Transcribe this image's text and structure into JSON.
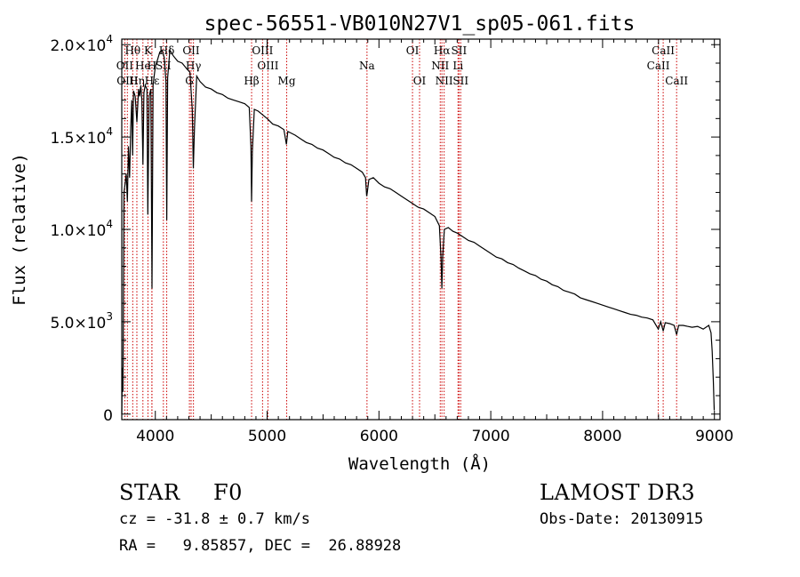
{
  "chart_data": {
    "type": "line",
    "title": "spec-56551-VB010N27V1_sp05-061.fits",
    "xlabel": "Wavelength (Å)",
    "ylabel": "Flux (relative)",
    "xlim": [
      3700,
      9050
    ],
    "ylim": [
      -300,
      20300
    ],
    "x_ticks": [
      4000,
      5000,
      6000,
      7000,
      8000,
      9000
    ],
    "x_tick_labels": [
      "4000",
      "5000",
      "6000",
      "7000",
      "8000",
      "9000"
    ],
    "y_ticks": [
      {
        "value": 0,
        "mantissa": "0",
        "exponent": ""
      },
      {
        "value": 5000,
        "mantissa": "5.0×10",
        "exponent": "3"
      },
      {
        "value": 10000,
        "mantissa": "1.0×10",
        "exponent": "4"
      },
      {
        "value": 15000,
        "mantissa": "1.5×10",
        "exponent": "4"
      },
      {
        "value": 20000,
        "mantissa": "2.0×10",
        "exponent": "4"
      }
    ],
    "series": [
      {
        "name": "spectrum",
        "color": "#000000",
        "points": [
          [
            3700,
            0
          ],
          [
            3705,
            2500
          ],
          [
            3710,
            1200
          ],
          [
            3720,
            12000
          ],
          [
            3730,
            12500
          ],
          [
            3740,
            13000
          ],
          [
            3750,
            11500
          ],
          [
            3760,
            14500
          ],
          [
            3770,
            12800
          ],
          [
            3780,
            15500
          ],
          [
            3790,
            17000
          ],
          [
            3797,
            14000
          ],
          [
            3805,
            17500
          ],
          [
            3820,
            17200
          ],
          [
            3835,
            15800
          ],
          [
            3850,
            17600
          ],
          [
            3860,
            17200
          ],
          [
            3870,
            17800
          ],
          [
            3880,
            17000
          ],
          [
            3889,
            13500
          ],
          [
            3898,
            17400
          ],
          [
            3910,
            17800
          ],
          [
            3925,
            17600
          ],
          [
            3933,
            10800
          ],
          [
            3945,
            17200
          ],
          [
            3960,
            17600
          ],
          [
            3970,
            6800
          ],
          [
            3980,
            17800
          ],
          [
            4000,
            18800
          ],
          [
            4020,
            19200
          ],
          [
            4040,
            19600
          ],
          [
            4060,
            19700
          ],
          [
            4080,
            19300
          ],
          [
            4095,
            18000
          ],
          [
            4102,
            10500
          ],
          [
            4110,
            18200
          ],
          [
            4130,
            19700
          ],
          [
            4160,
            19400
          ],
          [
            4200,
            19100
          ],
          [
            4240,
            19000
          ],
          [
            4280,
            18700
          ],
          [
            4310,
            18500
          ],
          [
            4330,
            16500
          ],
          [
            4340,
            13300
          ],
          [
            4350,
            15500
          ],
          [
            4370,
            18300
          ],
          [
            4400,
            18000
          ],
          [
            4450,
            17700
          ],
          [
            4500,
            17600
          ],
          [
            4550,
            17400
          ],
          [
            4600,
            17300
          ],
          [
            4650,
            17100
          ],
          [
            4700,
            17000
          ],
          [
            4750,
            16900
          ],
          [
            4800,
            16800
          ],
          [
            4840,
            16600
          ],
          [
            4855,
            14500
          ],
          [
            4861,
            11500
          ],
          [
            4868,
            14200
          ],
          [
            4885,
            16500
          ],
          [
            4920,
            16400
          ],
          [
            4960,
            16200
          ],
          [
            5000,
            16000
          ],
          [
            5050,
            15700
          ],
          [
            5100,
            15600
          ],
          [
            5150,
            15400
          ],
          [
            5172,
            14600
          ],
          [
            5185,
            15300
          ],
          [
            5250,
            15100
          ],
          [
            5300,
            14900
          ],
          [
            5350,
            14700
          ],
          [
            5400,
            14600
          ],
          [
            5450,
            14400
          ],
          [
            5500,
            14300
          ],
          [
            5550,
            14100
          ],
          [
            5600,
            13900
          ],
          [
            5650,
            13800
          ],
          [
            5700,
            13600
          ],
          [
            5750,
            13500
          ],
          [
            5800,
            13300
          ],
          [
            5850,
            13100
          ],
          [
            5880,
            12800
          ],
          [
            5890,
            11800
          ],
          [
            5896,
            12000
          ],
          [
            5910,
            12700
          ],
          [
            5950,
            12800
          ],
          [
            6000,
            12500
          ],
          [
            6050,
            12300
          ],
          [
            6100,
            12200
          ],
          [
            6150,
            12000
          ],
          [
            6200,
            11800
          ],
          [
            6250,
            11600
          ],
          [
            6300,
            11400
          ],
          [
            6350,
            11200
          ],
          [
            6400,
            11100
          ],
          [
            6450,
            10900
          ],
          [
            6500,
            10700
          ],
          [
            6540,
            10200
          ],
          [
            6555,
            8500
          ],
          [
            6563,
            6800
          ],
          [
            6570,
            8500
          ],
          [
            6585,
            10000
          ],
          [
            6620,
            10100
          ],
          [
            6660,
            9900
          ],
          [
            6700,
            9800
          ],
          [
            6750,
            9600
          ],
          [
            6800,
            9400
          ],
          [
            6850,
            9300
          ],
          [
            6900,
            9100
          ],
          [
            6950,
            8900
          ],
          [
            7000,
            8700
          ],
          [
            7050,
            8500
          ],
          [
            7100,
            8400
          ],
          [
            7150,
            8200
          ],
          [
            7200,
            8100
          ],
          [
            7250,
            7900
          ],
          [
            7300,
            7750
          ],
          [
            7350,
            7600
          ],
          [
            7400,
            7500
          ],
          [
            7450,
            7300
          ],
          [
            7500,
            7200
          ],
          [
            7550,
            7000
          ],
          [
            7600,
            6900
          ],
          [
            7650,
            6700
          ],
          [
            7700,
            6600
          ],
          [
            7750,
            6500
          ],
          [
            7800,
            6300
          ],
          [
            7850,
            6200
          ],
          [
            7900,
            6100
          ],
          [
            7950,
            6000
          ],
          [
            8000,
            5900
          ],
          [
            8050,
            5800
          ],
          [
            8100,
            5700
          ],
          [
            8150,
            5600
          ],
          [
            8200,
            5500
          ],
          [
            8250,
            5400
          ],
          [
            8300,
            5350
          ],
          [
            8350,
            5250
          ],
          [
            8400,
            5200
          ],
          [
            8450,
            5100
          ],
          [
            8498,
            4600
          ],
          [
            8520,
            5000
          ],
          [
            8542,
            4500
          ],
          [
            8560,
            4950
          ],
          [
            8600,
            4900
          ],
          [
            8640,
            4800
          ],
          [
            8662,
            4300
          ],
          [
            8680,
            4800
          ],
          [
            8720,
            4800
          ],
          [
            8760,
            4750
          ],
          [
            8800,
            4700
          ],
          [
            8850,
            4750
          ],
          [
            8900,
            4600
          ],
          [
            8950,
            4800
          ],
          [
            8970,
            4400
          ],
          [
            8980,
            3400
          ],
          [
            8990,
            1800
          ],
          [
            8998,
            200
          ]
        ]
      }
    ],
    "lines": [
      {
        "label": "Hθ",
        "wavelength": 3798,
        "row": 1,
        "color": "#cc0000"
      },
      {
        "label": "OII",
        "wavelength": 3727,
        "row": 2,
        "color": "#cc0000"
      },
      {
        "label": "OIII",
        "wavelength": 3750,
        "row": 3,
        "color": "#cc0000"
      },
      {
        "label": "Hη",
        "wavelength": 3835,
        "row": 3,
        "color": "#cc0000"
      },
      {
        "label": "He",
        "wavelength": 3889,
        "row": 2,
        "color": "#cc0000"
      },
      {
        "label": "K",
        "wavelength": 3934,
        "row": 1,
        "color": "#cc0000"
      },
      {
        "label": "H",
        "wavelength": 3969,
        "row": 2,
        "color": "#cc0000"
      },
      {
        "label": "Hε",
        "wavelength": 3970,
        "row": 3,
        "color": "#cc0000"
      },
      {
        "label": "Hδ",
        "wavelength": 4102,
        "row": 1,
        "color": "#cc0000"
      },
      {
        "label": "SII",
        "wavelength": 4072,
        "row": 2,
        "color": "#cc0000"
      },
      {
        "label": "OII",
        "wavelength": 4320,
        "row": 1,
        "color": "#cc0000"
      },
      {
        "label": "Hγ",
        "wavelength": 4341,
        "row": 2,
        "color": "#cc0000"
      },
      {
        "label": "G",
        "wavelength": 4305,
        "row": 3,
        "color": "#cc0000"
      },
      {
        "label": "Hβ",
        "wavelength": 4861,
        "row": 3,
        "color": "#cc0000"
      },
      {
        "label": "OIII",
        "wavelength": 4959,
        "row": 1,
        "color": "#cc0000"
      },
      {
        "label": "OIII",
        "wavelength": 5007,
        "row": 2,
        "color": "#cc0000"
      },
      {
        "label": "Mg",
        "wavelength": 5175,
        "row": 3,
        "color": "#cc0000"
      },
      {
        "label": "Na",
        "wavelength": 5893,
        "row": 2,
        "color": "#cc0000"
      },
      {
        "label": "OI",
        "wavelength": 6300,
        "row": 1,
        "color": "#cc0000"
      },
      {
        "label": "OI",
        "wavelength": 6363,
        "row": 3,
        "color": "#cc0000"
      },
      {
        "label": "NII",
        "wavelength": 6548,
        "row": 2,
        "color": "#cc0000"
      },
      {
        "label": "Hα",
        "wavelength": 6563,
        "row": 1,
        "color": "#cc0000"
      },
      {
        "label": "NII",
        "wavelength": 6583,
        "row": 3,
        "color": "#cc0000"
      },
      {
        "label": "Li",
        "wavelength": 6707,
        "row": 2,
        "color": "#cc0000"
      },
      {
        "label": "SII",
        "wavelength": 6716,
        "row": 1,
        "color": "#cc0000"
      },
      {
        "label": "SII",
        "wavelength": 6731,
        "row": 3,
        "color": "#cc0000"
      },
      {
        "label": "CaII",
        "wavelength": 8498,
        "row": 2,
        "color": "#cc0000"
      },
      {
        "label": "CaII",
        "wavelength": 8542,
        "row": 1,
        "color": "#cc0000"
      },
      {
        "label": "CaII",
        "wavelength": 8662,
        "row": 3,
        "color": "#cc0000"
      }
    ]
  },
  "info": {
    "object_class": "STAR",
    "subclass": "F0",
    "survey": "LAMOST DR3",
    "velocity": "cz = -31.8 ± 0.7 km/s",
    "obs_date": "Obs-Date: 20130915",
    "coordinates": "RA =   9.85857, DEC =  26.88928"
  }
}
